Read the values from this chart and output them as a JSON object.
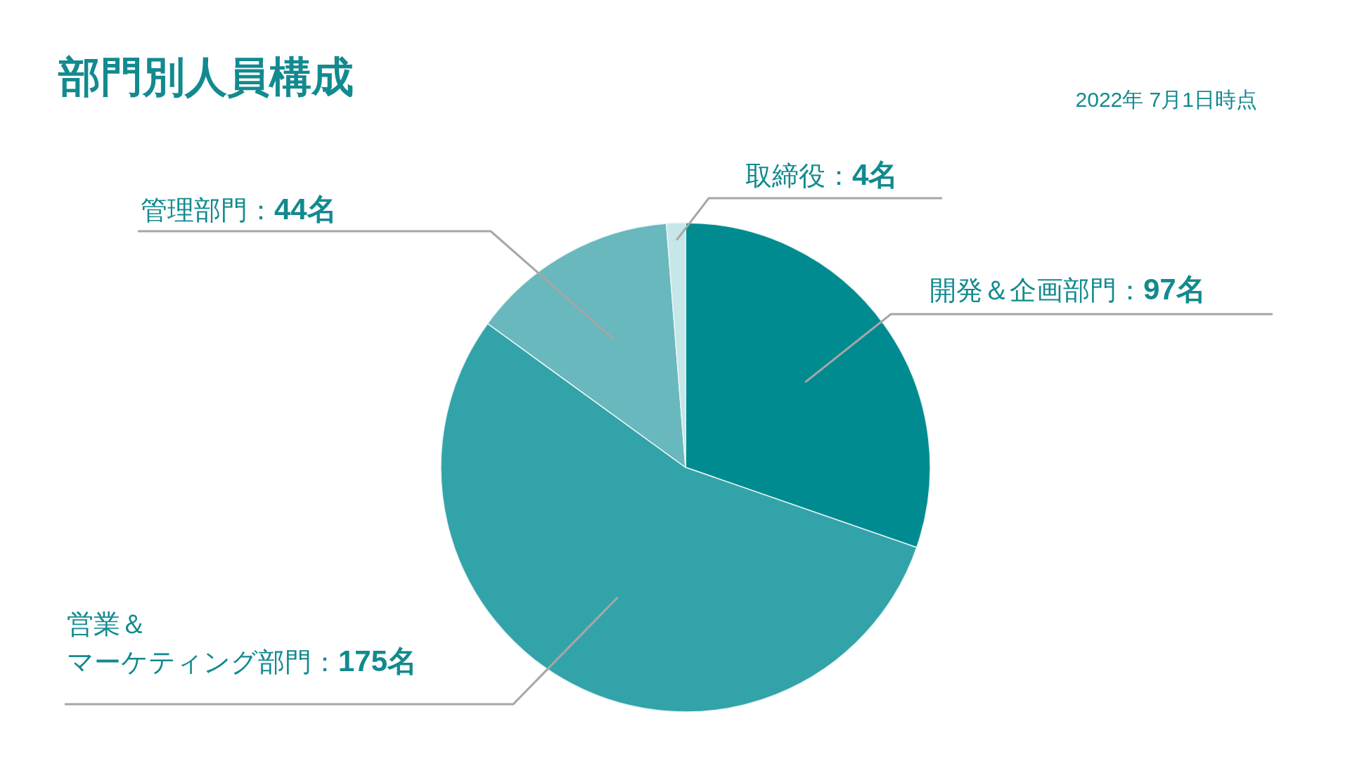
{
  "chart_data": {
    "type": "pie",
    "title": "部門別人員構成",
    "subtitle": "2022年 7月1日時点",
    "categories": [
      "開発＆企画部門",
      "営業＆マーケティング部門",
      "管理部門",
      "取締役"
    ],
    "values": [
      97,
      175,
      44,
      4
    ],
    "colors": [
      "#008b91",
      "#33a3aa",
      "#68b8bd",
      "#c6e6e8"
    ],
    "value_labels": [
      "：97名",
      "：175名",
      "：44名",
      "：4名"
    ]
  }
}
